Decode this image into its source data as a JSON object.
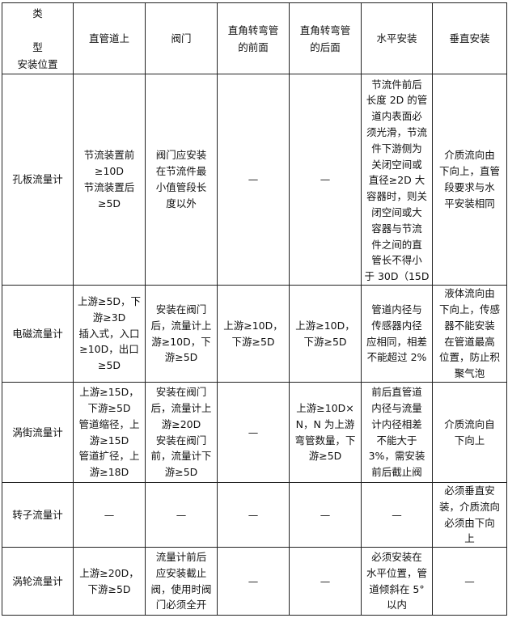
{
  "header": [
    "类\n\n型\n安装位置",
    "直管道上",
    "阀门",
    "直角转弯管\n的前面",
    "直角转弯管\n的后面",
    "水平安装",
    "垂直安装"
  ],
  "rows": [
    {
      "name": "孔板流量计",
      "cells": [
        "节流装置前\n≥10D\n节流装置后\n≥5D",
        "阀门应安装\n在节流件最\n小值管段长\n度以外",
        "—",
        "—",
        "节流件前后\n长度 2D 的管\n道内表面必\n须光滑，节流\n件下游侧为\n关闭空间或\n直径≥2D 大\n容器时，则关\n闭空间或大\n容器与节流\n件之间的直\n管长不得小\n于 30D（15D",
        "介质流向由\n下向上，直管\n段要求与水\n平安装相同"
      ]
    },
    {
      "name": "电磁流量计",
      "cells": [
        "上游≥5D，下\n游≥3D\n插入式，入口\n≥10D，出口\n≥5D",
        "安装在阀门\n后，流量计上\n游≥10D，下\n游≥5D",
        "上游≥10D，\n下游≥5D",
        "上游≥10D，\n下游≥5D",
        "管道内径与\n传感器内径\n应相同，相差\n不能超过 2%",
        "液体流向由\n下向上，传感\n器不能安装\n在管道最高\n位置，防止积\n聚气泡"
      ]
    },
    {
      "name": "涡街流量计",
      "cells": [
        "上游≥15D，\n下游≥5D\n管道缩径，上\n游≥15D\n管道扩径，上\n游≥18D",
        "安装在阀门\n后，流量计上\n游≥20D\n安装在阀门\n前，流量计下\n游≥5D",
        "—",
        "上游≥10D×\nN，N 为上游\n弯管数量，下\n游≥5D",
        "前后直管道\n内径与流量\n计内径相差\n不能大于\n3%，需安装\n前后截止阀",
        "介质流向自\n下向上"
      ]
    },
    {
      "name": "转子流量计",
      "cells": [
        "—",
        "—",
        "—",
        "—",
        "—",
        "必须垂直安\n装，介质流向\n必须由下向\n上"
      ]
    },
    {
      "name": "涡轮流量计",
      "cells": [
        "上游≥20D，\n下游≥5D",
        "流量计前后\n应安装截止\n阀，使用时阀\n门必须全开",
        "—",
        "—",
        "必须安装在\n水平位置，管\n道倾斜在 5°\n以内",
        "—"
      ]
    }
  ]
}
